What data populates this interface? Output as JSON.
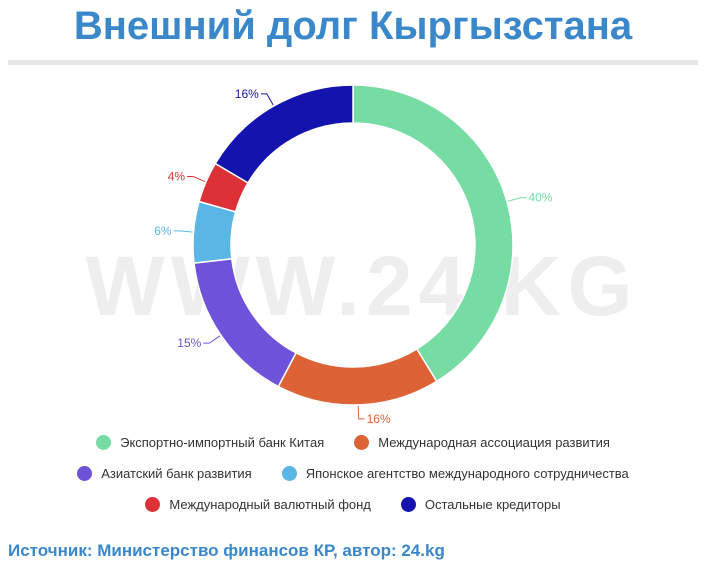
{
  "chart_data": {
    "type": "pie",
    "title": "Внешний долг Кыргызстана",
    "watermark": "WWW.24.KG",
    "series": [
      {
        "name": "Экспортно-импортный банк Китая",
        "value": 40,
        "label": "40%",
        "color": "#76dca4"
      },
      {
        "name": "Международная ассоциация развития",
        "value": 16,
        "label": "16%",
        "color": "#dd6236"
      },
      {
        "name": "Азиатский банк развития",
        "value": 15,
        "label": "15%",
        "color": "#6e52da"
      },
      {
        "name": "Японское агентство международного сотрудничества",
        "value": 6,
        "label": "6%",
        "color": "#5ab6e4"
      },
      {
        "name": "Международный валютный фонд",
        "value": 4,
        "label": "4%",
        "color": "#dc3237"
      },
      {
        "name": "Остальные кредиторы",
        "value": 16,
        "label": "16%",
        "color": "#1413ad"
      }
    ],
    "legend": "bottom"
  },
  "source": "Источник: Министерство финансов КР, автор: 24.kg"
}
